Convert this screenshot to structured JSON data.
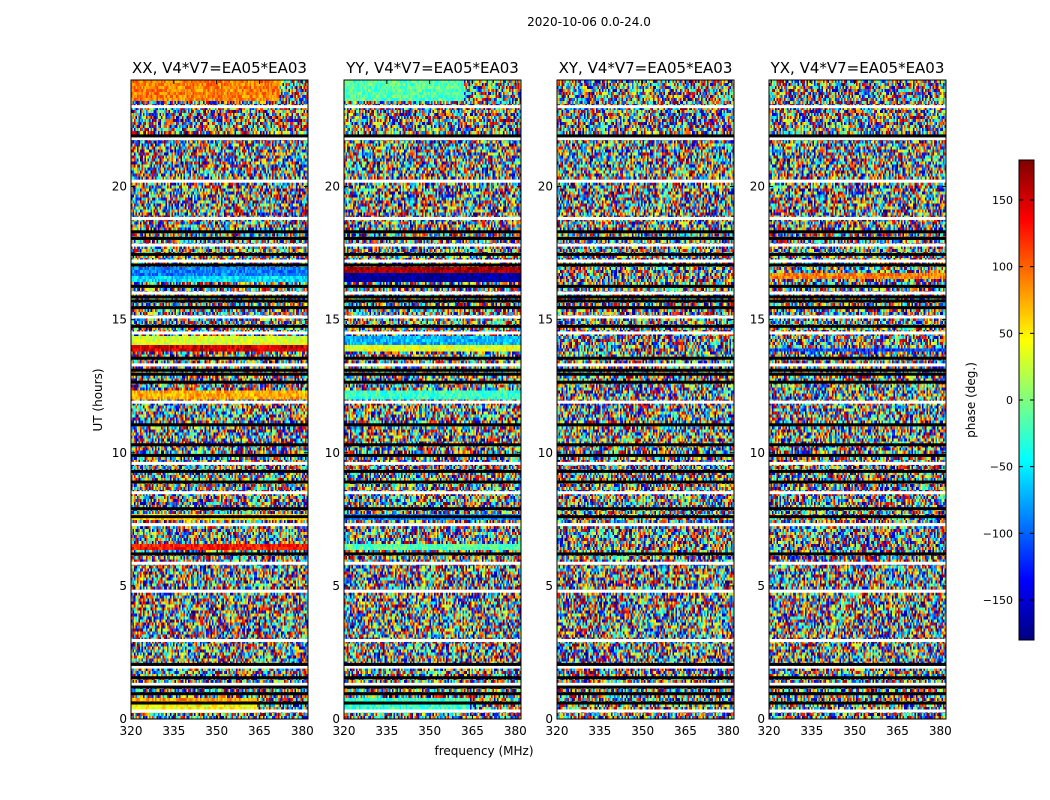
{
  "chart_data": {
    "type": "heatmap",
    "suptitle": "2020-10-06 0.0-24.0",
    "xlabel": "frequency (MHz)",
    "ylabel": "UT (hours)",
    "xlim": [
      320,
      382
    ],
    "ylim": [
      0,
      24
    ],
    "xticks": [
      320,
      335,
      350,
      365,
      380
    ],
    "yticks": [
      0,
      5,
      10,
      15,
      20
    ],
    "colorbar": {
      "label": "phase (deg.)",
      "range": [
        -180,
        180
      ],
      "ticks": [
        150,
        100,
        50,
        0,
        -50,
        -100,
        -150
      ],
      "colormap": [
        "#00007f",
        "#0000ff",
        "#007fff",
        "#00ffff",
        "#7fff7f",
        "#ffff00",
        "#ff7f00",
        "#ff0000",
        "#7f0000"
      ]
    },
    "panels": [
      {
        "title": "XX, V4*V7=EA05*EA03",
        "bands": [
          {
            "t0": 0.25,
            "t1": 0.55,
            "phase": 45,
            "f1": 364
          },
          {
            "t0": 0.55,
            "t1": 0.75,
            "phase": 80,
            "f1": 364
          },
          {
            "t0": 6.3,
            "t1": 6.55,
            "phase": 130
          },
          {
            "t0": 7.45,
            "t1": 7.7,
            "phase": 60
          },
          {
            "t0": 12.0,
            "t1": 12.35,
            "phase": 75
          },
          {
            "t0": 13.8,
            "t1": 14.05,
            "phase": 150
          },
          {
            "t0": 14.05,
            "t1": 14.4,
            "phase": 30
          },
          {
            "t0": 16.4,
            "t1": 16.65,
            "phase": -55
          },
          {
            "t0": 16.65,
            "t1": 16.95,
            "phase": -90
          },
          {
            "t0": 23.2,
            "t1": 24.0,
            "phase": 90,
            "f1": 372
          }
        ]
      },
      {
        "title": "YY, V4*V7=EA05*EA03",
        "bands": [
          {
            "t0": 0.25,
            "t1": 0.75,
            "phase": -25,
            "f1": 364
          },
          {
            "t0": 6.3,
            "t1": 6.55,
            "phase": -15
          },
          {
            "t0": 7.45,
            "t1": 7.7,
            "phase": -90
          },
          {
            "t0": 12.0,
            "t1": 12.35,
            "phase": -25
          },
          {
            "t0": 13.8,
            "t1": 14.05,
            "phase": 35
          },
          {
            "t0": 14.05,
            "t1": 14.4,
            "phase": -70
          },
          {
            "t0": 16.45,
            "t1": 16.7,
            "phase": -175
          },
          {
            "t0": 16.7,
            "t1": 16.95,
            "phase": 170
          },
          {
            "t0": 23.2,
            "t1": 24.0,
            "phase": -15,
            "f1": 362
          }
        ]
      },
      {
        "title": "XY, V4*V7=EA05*EA03",
        "bands": []
      },
      {
        "title": "YX, V4*V7=EA05*EA03",
        "bands": [
          {
            "t0": 16.55,
            "t1": 16.8,
            "phase": 90
          },
          {
            "t0": 13.8,
            "t1": 13.95,
            "phase": -110
          }
        ]
      }
    ],
    "gaps_white": [
      0.3,
      1.3,
      1.95,
      2.95,
      4.8,
      5.85,
      7.3,
      8.5,
      9.6,
      11.9,
      13.3,
      14.5,
      15.1,
      16.0,
      17.2,
      17.8,
      18.8,
      20.2,
      21.8,
      23.0
    ],
    "gaps_black": [
      0.6,
      0.95,
      1.2,
      1.55,
      2.05,
      6.2,
      7.6,
      7.9,
      8.9,
      9.3,
      9.9,
      10.3,
      11.05,
      12.65,
      12.95,
      13.1,
      13.55,
      14.75,
      15.45,
      15.7,
      15.85,
      16.25,
      17.05,
      17.45,
      18.05,
      18.3,
      21.9
    ]
  }
}
